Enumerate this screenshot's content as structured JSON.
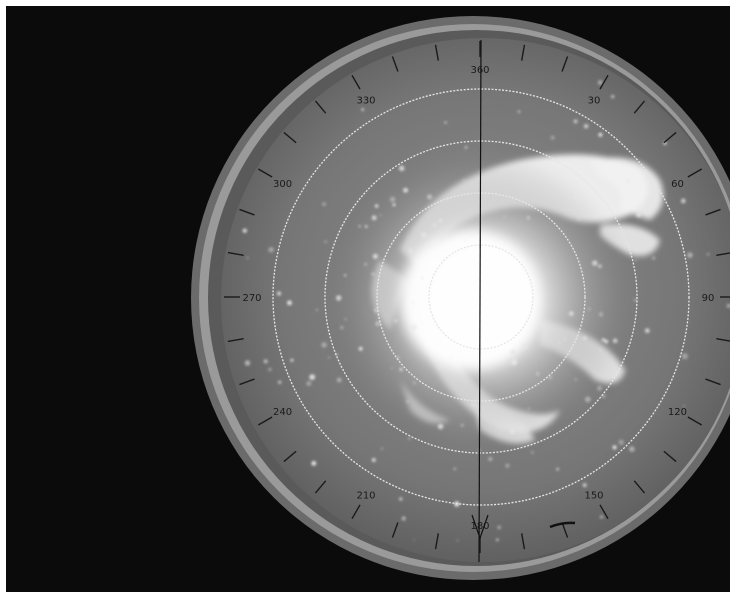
{
  "scope": {
    "bearing_labels": [
      {
        "text": "360",
        "bearing": 0
      },
      {
        "text": "30",
        "bearing": 30
      },
      {
        "text": "60",
        "bearing": 60
      },
      {
        "text": "90",
        "bearing": 90
      },
      {
        "text": "120",
        "bearing": 120
      },
      {
        "text": "150",
        "bearing": 150
      },
      {
        "text": "180",
        "bearing": 180
      },
      {
        "text": "210",
        "bearing": 210
      },
      {
        "text": "240",
        "bearing": 240
      },
      {
        "text": "270",
        "bearing": 270
      },
      {
        "text": "300",
        "bearing": 300
      },
      {
        "text": "330",
        "bearing": 330
      }
    ],
    "tick_interval_degrees": 10,
    "range_ring_count": 4
  }
}
